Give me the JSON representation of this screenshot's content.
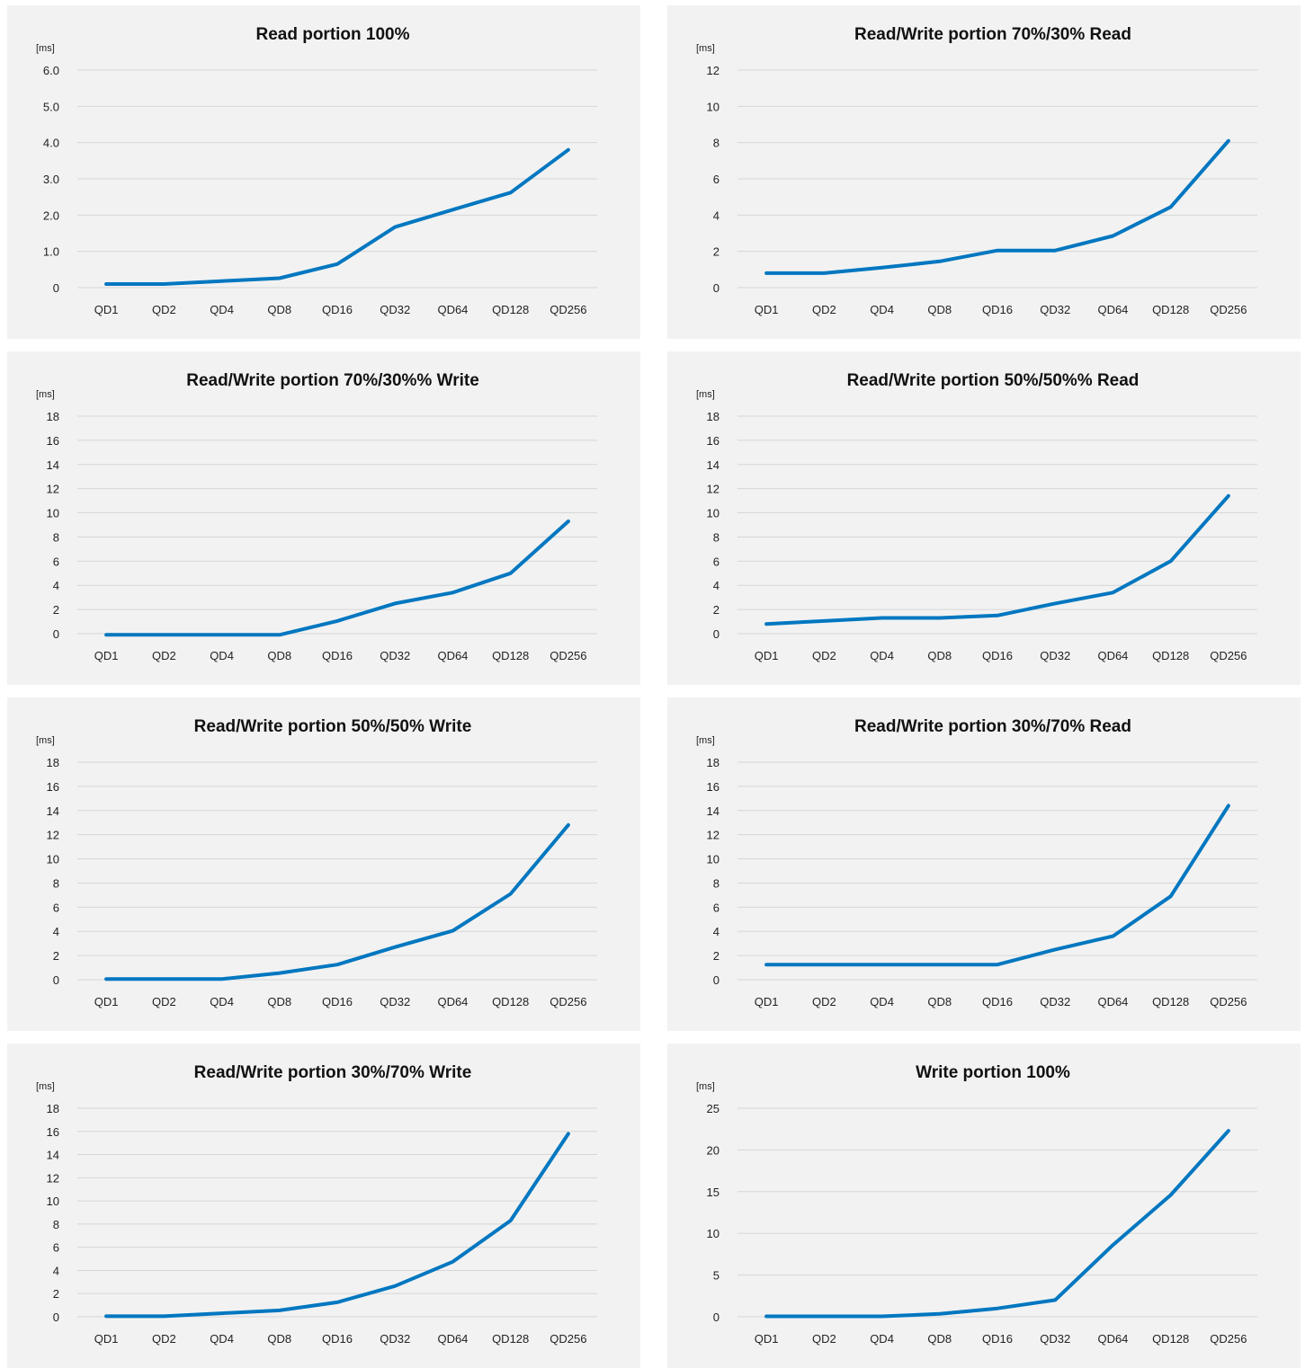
{
  "colors": {
    "series": "#0077c0",
    "background": "#f2f2f2",
    "grid": "#d6d6d6"
  },
  "chart_data": [
    {
      "type": "line",
      "title": "Read portion 100%",
      "ylabel": "[ms]",
      "categories": [
        "QD1",
        "QD2",
        "QD4",
        "QD8",
        "QD16",
        "QD32",
        "QD64",
        "QD128",
        "QD256"
      ],
      "ylim": [
        0,
        6
      ],
      "yticks": [
        "0",
        "1.0",
        "2.0",
        "3.0",
        "4.0",
        "5.0",
        "6.0"
      ],
      "grid": true,
      "series": [
        {
          "values": [
            0.1,
            0.1,
            0.18,
            0.26,
            0.65,
            1.67,
            2.15,
            2.62,
            3.8
          ]
        }
      ]
    },
    {
      "type": "line",
      "title": "Read/Write portion 70%/30% Read",
      "ylabel": "[ms]",
      "categories": [
        "QD1",
        "QD2",
        "QD4",
        "QD8",
        "QD16",
        "QD32",
        "QD64",
        "QD128",
        "QD256"
      ],
      "ylim": [
        0,
        12
      ],
      "yticks": [
        "0",
        "2",
        "4",
        "6",
        "8",
        "10",
        "12"
      ],
      "grid": true,
      "series": [
        {
          "values": [
            0.8,
            0.8,
            1.1,
            1.45,
            2.05,
            2.05,
            2.85,
            4.45,
            8.1
          ]
        }
      ]
    },
    {
      "type": "line",
      "title": "Read/Write portion 70%/30%% Write",
      "ylabel": "[ms]",
      "categories": [
        "QD1",
        "QD2",
        "QD4",
        "QD8",
        "QD16",
        "QD32",
        "QD64",
        "QD128",
        "QD256"
      ],
      "ylim": [
        0,
        18
      ],
      "yticks": [
        "0",
        "2",
        "4",
        "6",
        "8",
        "10",
        "12",
        "14",
        "16",
        "18"
      ],
      "grid": true,
      "series": [
        {
          "values": [
            -0.1,
            -0.1,
            -0.1,
            -0.1,
            1.05,
            2.5,
            3.4,
            5.0,
            9.3
          ]
        }
      ]
    },
    {
      "type": "line",
      "title": "Read/Write portion 50%/50%% Read",
      "ylabel": "[ms]",
      "categories": [
        "QD1",
        "QD2",
        "QD4",
        "QD8",
        "QD16",
        "QD32",
        "QD64",
        "QD128",
        "QD256"
      ],
      "ylim": [
        0,
        18
      ],
      "yticks": [
        "0",
        "2",
        "4",
        "6",
        "8",
        "10",
        "12",
        "14",
        "16",
        "18"
      ],
      "grid": true,
      "series": [
        {
          "values": [
            0.8,
            1.05,
            1.3,
            1.3,
            1.5,
            2.5,
            3.4,
            6.0,
            11.4
          ]
        }
      ]
    },
    {
      "type": "line",
      "title": "Read/Write portion 50%/50% Write",
      "ylabel": "[ms]",
      "categories": [
        "QD1",
        "QD2",
        "QD4",
        "QD8",
        "QD16",
        "QD32",
        "QD64",
        "QD128",
        "QD256"
      ],
      "ylim": [
        0,
        18
      ],
      "yticks": [
        "0",
        "2",
        "4",
        "6",
        "8",
        "10",
        "12",
        "14",
        "16",
        "18"
      ],
      "grid": true,
      "series": [
        {
          "values": [
            0.05,
            0.05,
            0.05,
            0.55,
            1.25,
            2.7,
            4.05,
            7.1,
            12.8
          ]
        }
      ]
    },
    {
      "type": "line",
      "title": "Read/Write portion 30%/70% Read",
      "ylabel": "[ms]",
      "categories": [
        "QD1",
        "QD2",
        "QD4",
        "QD8",
        "QD16",
        "QD32",
        "QD64",
        "QD128",
        "QD256"
      ],
      "ylim": [
        0,
        18
      ],
      "yticks": [
        "0",
        "2",
        "4",
        "6",
        "8",
        "10",
        "12",
        "14",
        "16",
        "18"
      ],
      "grid": true,
      "series": [
        {
          "values": [
            1.25,
            1.25,
            1.25,
            1.25,
            1.25,
            2.5,
            3.6,
            6.9,
            14.4
          ]
        }
      ]
    },
    {
      "type": "line",
      "title": "Read/Write portion 30%/70% Write",
      "ylabel": "[ms]",
      "categories": [
        "QD1",
        "QD2",
        "QD4",
        "QD8",
        "QD16",
        "QD32",
        "QD64",
        "QD128",
        "QD256"
      ],
      "ylim": [
        0,
        18
      ],
      "yticks": [
        "0",
        "2",
        "4",
        "6",
        "8",
        "10",
        "12",
        "14",
        "16",
        "18"
      ],
      "grid": true,
      "series": [
        {
          "values": [
            0.05,
            0.05,
            0.3,
            0.55,
            1.25,
            2.65,
            4.75,
            8.3,
            15.8
          ]
        }
      ]
    },
    {
      "type": "line",
      "title": "Write portion 100%",
      "ylabel": "[ms]",
      "categories": [
        "QD1",
        "QD2",
        "QD4",
        "QD8",
        "QD16",
        "QD32",
        "QD64",
        "QD128",
        "QD256"
      ],
      "ylim": [
        0,
        25
      ],
      "yticks": [
        "0",
        "5",
        "10",
        "15",
        "20",
        "25"
      ],
      "grid": true,
      "series": [
        {
          "values": [
            0.05,
            0.05,
            0.05,
            0.35,
            1.0,
            2.0,
            8.6,
            14.6,
            22.3
          ]
        }
      ]
    }
  ]
}
